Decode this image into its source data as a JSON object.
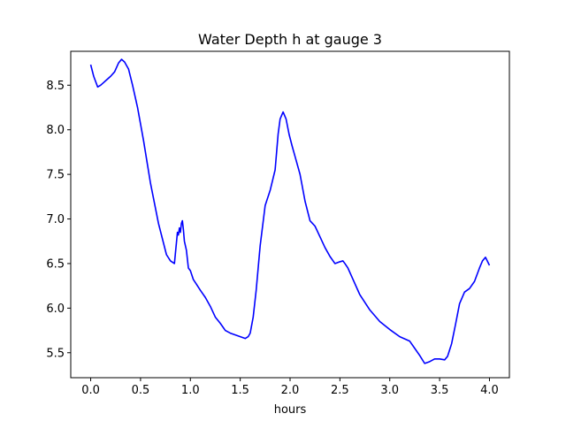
{
  "chart_data": {
    "type": "line",
    "title": "Water Depth h at gauge 3",
    "xlabel": "hours",
    "ylabel": "",
    "xlim": [
      -0.2,
      4.2
    ],
    "ylim": [
      5.22,
      8.88
    ],
    "xticks": [
      0.0,
      0.5,
      1.0,
      1.5,
      2.0,
      2.5,
      3.0,
      3.5,
      4.0
    ],
    "xtick_labels": [
      "0.0",
      "0.5",
      "1.0",
      "1.5",
      "2.0",
      "2.5",
      "3.0",
      "3.5",
      "4.0"
    ],
    "yticks": [
      5.5,
      6.0,
      6.5,
      7.0,
      7.5,
      8.0,
      8.5
    ],
    "ytick_labels": [
      "5.5",
      "6.0",
      "6.5",
      "7.0",
      "7.5",
      "8.0",
      "8.5"
    ],
    "grid": false,
    "line_color": "#0000ff",
    "series": [
      {
        "x": [
          0.0,
          0.03,
          0.07,
          0.1,
          0.13,
          0.16,
          0.2,
          0.24,
          0.28,
          0.31,
          0.34,
          0.38,
          0.42,
          0.47,
          0.53,
          0.6,
          0.68,
          0.76,
          0.8,
          0.84,
          0.87,
          0.88,
          0.89,
          0.9,
          0.91,
          0.92,
          0.93,
          0.94,
          0.96,
          0.98,
          1.0,
          1.03,
          1.06,
          1.1,
          1.15,
          1.2,
          1.25,
          1.3,
          1.35,
          1.4,
          1.45,
          1.5,
          1.55,
          1.58,
          1.6,
          1.63,
          1.66,
          1.7,
          1.75,
          1.8,
          1.85,
          1.88,
          1.9,
          1.93,
          1.96,
          1.99,
          2.02,
          2.05,
          2.1,
          2.15,
          2.2,
          2.25,
          2.3,
          2.35,
          2.4,
          2.45,
          2.5,
          2.53,
          2.55,
          2.58,
          2.62,
          2.7,
          2.8,
          2.9,
          3.0,
          3.1,
          3.2,
          3.25,
          3.3,
          3.35,
          3.4,
          3.45,
          3.5,
          3.55,
          3.58,
          3.62,
          3.66,
          3.7,
          3.75,
          3.8,
          3.85,
          3.9,
          3.93,
          3.96,
          4.0
        ],
        "y": [
          8.73,
          8.6,
          8.48,
          8.5,
          8.53,
          8.56,
          8.6,
          8.65,
          8.75,
          8.79,
          8.76,
          8.68,
          8.5,
          8.25,
          7.88,
          7.4,
          6.95,
          6.6,
          6.53,
          6.5,
          6.85,
          6.82,
          6.9,
          6.85,
          6.95,
          6.98,
          6.88,
          6.75,
          6.65,
          6.45,
          6.42,
          6.32,
          6.27,
          6.2,
          6.12,
          6.02,
          5.9,
          5.83,
          5.75,
          5.72,
          5.7,
          5.68,
          5.66,
          5.68,
          5.72,
          5.9,
          6.2,
          6.7,
          7.15,
          7.32,
          7.55,
          7.95,
          8.12,
          8.2,
          8.12,
          7.95,
          7.82,
          7.7,
          7.5,
          7.2,
          6.98,
          6.92,
          6.8,
          6.68,
          6.58,
          6.5,
          6.52,
          6.53,
          6.5,
          6.45,
          6.35,
          6.15,
          5.98,
          5.85,
          5.76,
          5.68,
          5.63,
          5.55,
          5.47,
          5.38,
          5.4,
          5.43,
          5.43,
          5.42,
          5.46,
          5.6,
          5.82,
          6.05,
          6.18,
          6.22,
          6.3,
          6.45,
          6.53,
          6.57,
          6.48
        ]
      }
    ]
  }
}
